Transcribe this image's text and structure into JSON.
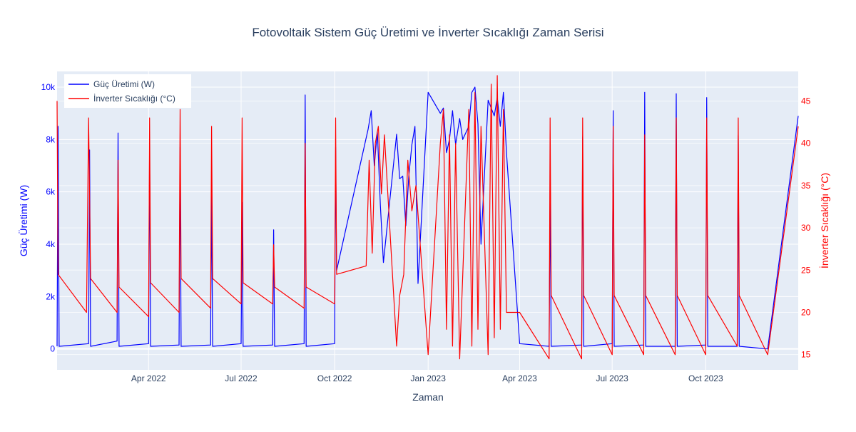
{
  "chart_data": {
    "type": "line",
    "title": "Fotovoltaik Sistem Güç Üretimi ve İnverter Sıcaklığı Zaman Serisi",
    "xlabel": "Zaman",
    "ylabel": "Güç Üretimi (W)",
    "y2label": "İnverter Sıcaklığı (°C)",
    "x_range": [
      "2022-01-01",
      "2023-12-31"
    ],
    "ylim": [
      -800,
      10600
    ],
    "y2lim": [
      13.2,
      48.5
    ],
    "x_ticks": [
      {
        "date": "2022-04-01",
        "label": "Apr 2022"
      },
      {
        "date": "2022-07-01",
        "label": "Jul 2022"
      },
      {
        "date": "2022-10-01",
        "label": "Oct 2022"
      },
      {
        "date": "2023-01-01",
        "label": "Jan 2023"
      },
      {
        "date": "2023-04-01",
        "label": "Apr 2023"
      },
      {
        "date": "2023-07-01",
        "label": "Jul 2023"
      },
      {
        "date": "2023-10-01",
        "label": "Oct 2023"
      }
    ],
    "y_ticks": [
      {
        "value": 0,
        "label": "0"
      },
      {
        "value": 2000,
        "label": "2k"
      },
      {
        "value": 4000,
        "label": "4k"
      },
      {
        "value": 6000,
        "label": "6k"
      },
      {
        "value": 8000,
        "label": "8k"
      },
      {
        "value": 10000,
        "label": "10k"
      }
    ],
    "y2_ticks": [
      {
        "value": 15,
        "label": "15"
      },
      {
        "value": 20,
        "label": "20"
      },
      {
        "value": 25,
        "label": "25"
      },
      {
        "value": 30,
        "label": "30"
      },
      {
        "value": 35,
        "label": "35"
      },
      {
        "value": 40,
        "label": "40"
      },
      {
        "value": 45,
        "label": "45"
      }
    ],
    "grid": true,
    "legend_position": "top-left",
    "series": [
      {
        "name": "Güç Üretimi (W)",
        "axis": "y",
        "color": "#0000ff",
        "points": [
          [
            "2022-01-01",
            100
          ],
          [
            "2022-01-02",
            8500
          ],
          [
            "2022-01-03",
            100
          ],
          [
            "2022-02-01",
            200
          ],
          [
            "2022-02-02",
            7600
          ],
          [
            "2022-02-03",
            100
          ],
          [
            "2022-03-01",
            300
          ],
          [
            "2022-03-02",
            8250
          ],
          [
            "2022-03-03",
            100
          ],
          [
            "2022-04-01",
            200
          ],
          [
            "2022-04-02",
            7900
          ],
          [
            "2022-04-03",
            100
          ],
          [
            "2022-05-01",
            150
          ],
          [
            "2022-05-02",
            7700
          ],
          [
            "2022-05-03",
            100
          ],
          [
            "2022-06-01",
            150
          ],
          [
            "2022-06-02",
            6000
          ],
          [
            "2022-06-03",
            100
          ],
          [
            "2022-07-01",
            200
          ],
          [
            "2022-07-02",
            5600
          ],
          [
            "2022-07-03",
            100
          ],
          [
            "2022-08-01",
            150
          ],
          [
            "2022-08-02",
            4550
          ],
          [
            "2022-08-03",
            100
          ],
          [
            "2022-09-01",
            200
          ],
          [
            "2022-09-02",
            9700
          ],
          [
            "2022-09-03",
            100
          ],
          [
            "2022-10-01",
            200
          ],
          [
            "2022-10-02",
            7700
          ],
          [
            "2022-10-03",
            3000
          ],
          [
            "2022-11-03",
            8400
          ],
          [
            "2022-11-06",
            9100
          ],
          [
            "2022-11-09",
            7000
          ],
          [
            "2022-11-12",
            8300
          ],
          [
            "2022-11-15",
            5500
          ],
          [
            "2022-11-18",
            3300
          ],
          [
            "2022-12-01",
            8200
          ],
          [
            "2022-12-04",
            6500
          ],
          [
            "2022-12-07",
            6600
          ],
          [
            "2022-12-10",
            4700
          ],
          [
            "2022-12-13",
            6600
          ],
          [
            "2022-12-16",
            7800
          ],
          [
            "2022-12-19",
            8500
          ],
          [
            "2022-12-22",
            2500
          ],
          [
            "2023-01-01",
            9800
          ],
          [
            "2023-01-13",
            9000
          ],
          [
            "2023-01-16",
            9200
          ],
          [
            "2023-01-19",
            7500
          ],
          [
            "2023-01-22",
            8000
          ],
          [
            "2023-01-25",
            9100
          ],
          [
            "2023-01-28",
            7800
          ],
          [
            "2023-02-01",
            8800
          ],
          [
            "2023-02-04",
            8000
          ],
          [
            "2023-02-10",
            8500
          ],
          [
            "2023-02-13",
            9800
          ],
          [
            "2023-02-16",
            10000
          ],
          [
            "2023-02-19",
            8600
          ],
          [
            "2023-02-22",
            4000
          ],
          [
            "2023-03-01",
            9500
          ],
          [
            "2023-03-04",
            9200
          ],
          [
            "2023-03-07",
            8900
          ],
          [
            "2023-03-10",
            9600
          ],
          [
            "2023-03-13",
            8500
          ],
          [
            "2023-03-16",
            9800
          ],
          [
            "2023-03-19",
            7500
          ],
          [
            "2023-04-01",
            200
          ],
          [
            "2023-04-30",
            100
          ],
          [
            "2023-05-01",
            6000
          ],
          [
            "2023-05-02",
            100
          ],
          [
            "2023-06-01",
            150
          ],
          [
            "2023-06-02",
            8100
          ],
          [
            "2023-06-03",
            100
          ],
          [
            "2023-07-01",
            200
          ],
          [
            "2023-07-02",
            9100
          ],
          [
            "2023-07-03",
            100
          ],
          [
            "2023-08-01",
            150
          ],
          [
            "2023-08-02",
            9800
          ],
          [
            "2023-08-03",
            100
          ],
          [
            "2023-09-01",
            100
          ],
          [
            "2023-09-02",
            9750
          ],
          [
            "2023-09-03",
            100
          ],
          [
            "2023-10-01",
            150
          ],
          [
            "2023-10-02",
            9600
          ],
          [
            "2023-10-03",
            100
          ],
          [
            "2023-11-01",
            100
          ],
          [
            "2023-11-02",
            8150
          ],
          [
            "2023-11-03",
            100
          ],
          [
            "2023-12-01",
            0
          ],
          [
            "2023-12-31",
            8900
          ]
        ]
      },
      {
        "name": "İnverter Sıcaklığı (°C)",
        "axis": "y2",
        "color": "#ff0000",
        "points": [
          [
            "2022-01-01",
            45
          ],
          [
            "2022-01-02",
            24.5
          ],
          [
            "2022-01-30",
            20
          ],
          [
            "2022-02-01",
            43
          ],
          [
            "2022-02-03",
            24
          ],
          [
            "2022-03-01",
            20
          ],
          [
            "2022-03-02",
            38
          ],
          [
            "2022-03-03",
            23
          ],
          [
            "2022-04-01",
            19.5
          ],
          [
            "2022-04-02",
            43
          ],
          [
            "2022-04-03",
            23.5
          ],
          [
            "2022-05-01",
            20
          ],
          [
            "2022-05-02",
            44
          ],
          [
            "2022-05-03",
            24
          ],
          [
            "2022-06-01",
            20.5
          ],
          [
            "2022-06-02",
            42
          ],
          [
            "2022-06-03",
            24
          ],
          [
            "2022-07-01",
            21
          ],
          [
            "2022-07-02",
            43
          ],
          [
            "2022-07-03",
            23.5
          ],
          [
            "2022-08-01",
            21
          ],
          [
            "2022-08-02",
            28
          ],
          [
            "2022-08-03",
            23
          ],
          [
            "2022-09-01",
            20.5
          ],
          [
            "2022-09-02",
            40
          ],
          [
            "2022-09-03",
            23
          ],
          [
            "2022-10-01",
            21
          ],
          [
            "2022-10-02",
            43
          ],
          [
            "2022-10-03",
            24.5
          ],
          [
            "2022-11-01",
            25.5
          ],
          [
            "2022-11-04",
            38
          ],
          [
            "2022-11-07",
            27
          ],
          [
            "2022-11-10",
            40
          ],
          [
            "2022-11-13",
            42
          ],
          [
            "2022-11-16",
            34
          ],
          [
            "2022-11-19",
            41
          ],
          [
            "2022-12-01",
            16
          ],
          [
            "2022-12-04",
            22
          ],
          [
            "2022-12-08",
            24.5
          ],
          [
            "2022-12-12",
            38
          ],
          [
            "2022-12-16",
            32
          ],
          [
            "2022-12-20",
            35
          ],
          [
            "2023-01-01",
            15
          ],
          [
            "2023-01-13",
            40
          ],
          [
            "2023-01-16",
            44
          ],
          [
            "2023-01-19",
            18
          ],
          [
            "2023-01-22",
            41
          ],
          [
            "2023-01-25",
            16
          ],
          [
            "2023-01-28",
            40
          ],
          [
            "2023-02-01",
            14.5
          ],
          [
            "2023-02-10",
            44
          ],
          [
            "2023-02-13",
            16
          ],
          [
            "2023-02-16",
            46
          ],
          [
            "2023-02-19",
            18
          ],
          [
            "2023-02-22",
            42
          ],
          [
            "2023-03-01",
            15
          ],
          [
            "2023-03-04",
            47
          ],
          [
            "2023-03-07",
            17
          ],
          [
            "2023-03-10",
            48
          ],
          [
            "2023-03-13",
            18
          ],
          [
            "2023-03-16",
            44
          ],
          [
            "2023-03-19",
            20
          ],
          [
            "2023-04-01",
            20
          ],
          [
            "2023-04-30",
            14.5
          ],
          [
            "2023-05-01",
            43
          ],
          [
            "2023-05-02",
            22
          ],
          [
            "2023-06-01",
            14.5
          ],
          [
            "2023-06-02",
            43
          ],
          [
            "2023-06-03",
            22
          ],
          [
            "2023-07-01",
            15
          ],
          [
            "2023-07-02",
            42
          ],
          [
            "2023-07-03",
            22
          ],
          [
            "2023-08-01",
            15
          ],
          [
            "2023-08-02",
            41
          ],
          [
            "2023-08-03",
            22
          ],
          [
            "2023-09-01",
            15
          ],
          [
            "2023-09-02",
            43
          ],
          [
            "2023-09-03",
            22
          ],
          [
            "2023-10-01",
            15
          ],
          [
            "2023-10-02",
            43
          ],
          [
            "2023-10-03",
            22
          ],
          [
            "2023-11-01",
            16
          ],
          [
            "2023-11-02",
            43
          ],
          [
            "2023-11-03",
            22
          ],
          [
            "2023-12-01",
            15
          ],
          [
            "2023-12-31",
            42
          ]
        ]
      }
    ]
  }
}
